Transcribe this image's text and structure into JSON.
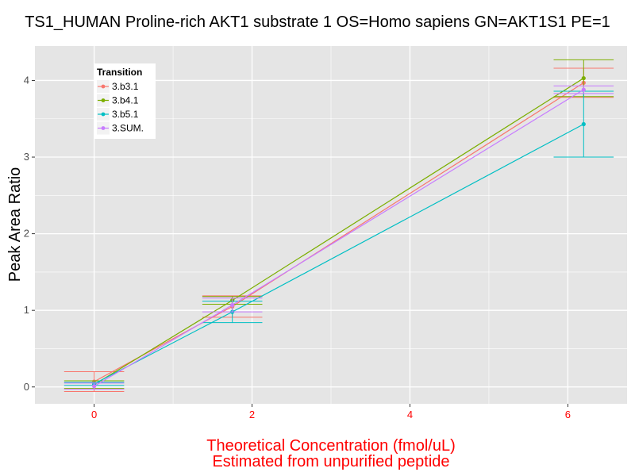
{
  "chart_data": {
    "type": "line",
    "title": "TS1_HUMAN Proline-rich AKT1 substrate 1 OS=Homo sapiens GN=AKT1S1 PE=1",
    "xlabel": "Theoretical Concentration (fmol/uL)",
    "xlabel2": "Estimated from unpurified peptide",
    "ylabel": "Peak Area Ratio",
    "xlim": [
      -0.75,
      6.75
    ],
    "ylim": [
      -0.22,
      4.45
    ],
    "x_ticks": [
      0,
      2,
      4,
      6
    ],
    "y_ticks": [
      0,
      1,
      2,
      3,
      4
    ],
    "grid": true,
    "legend": {
      "title": "Transition",
      "position": "top-left"
    },
    "series": [
      {
        "name": "3.b3.1",
        "color": "#F8766D",
        "points": [
          {
            "x": 0.0,
            "y": 0.07,
            "err": 0.13
          },
          {
            "x": 1.75,
            "y": 1.05,
            "err": 0.14
          },
          {
            "x": 6.2,
            "y": 3.97,
            "err": 0.19
          }
        ]
      },
      {
        "name": "3.b4.1",
        "color": "#7CAE00",
        "points": [
          {
            "x": 0.0,
            "y": 0.03,
            "err": 0.05
          },
          {
            "x": 1.75,
            "y": 1.13,
            "err": 0.05
          },
          {
            "x": 6.2,
            "y": 4.03,
            "err": 0.24
          }
        ]
      },
      {
        "name": "3.b5.1",
        "color": "#00BFC4",
        "points": [
          {
            "x": 0.0,
            "y": 0.04,
            "err": 0.02
          },
          {
            "x": 1.75,
            "y": 0.98,
            "err": 0.14
          },
          {
            "x": 6.2,
            "y": 3.43,
            "err": 0.43
          }
        ]
      },
      {
        "name": "3.SUM.",
        "color": "#C77CFF",
        "points": [
          {
            "x": 0.0,
            "y": 0.01,
            "err": 0.04
          },
          {
            "x": 1.75,
            "y": 1.07,
            "err": 0.09
          },
          {
            "x": 6.2,
            "y": 3.88,
            "err": 0.05
          }
        ]
      }
    ],
    "colors": {
      "panel": "#E5E5E5",
      "grid": "#FFFFFF",
      "axis_title_x": "#FF0000",
      "tick_x": "#FF0000",
      "tick_y": "#4D4D4D"
    }
  }
}
